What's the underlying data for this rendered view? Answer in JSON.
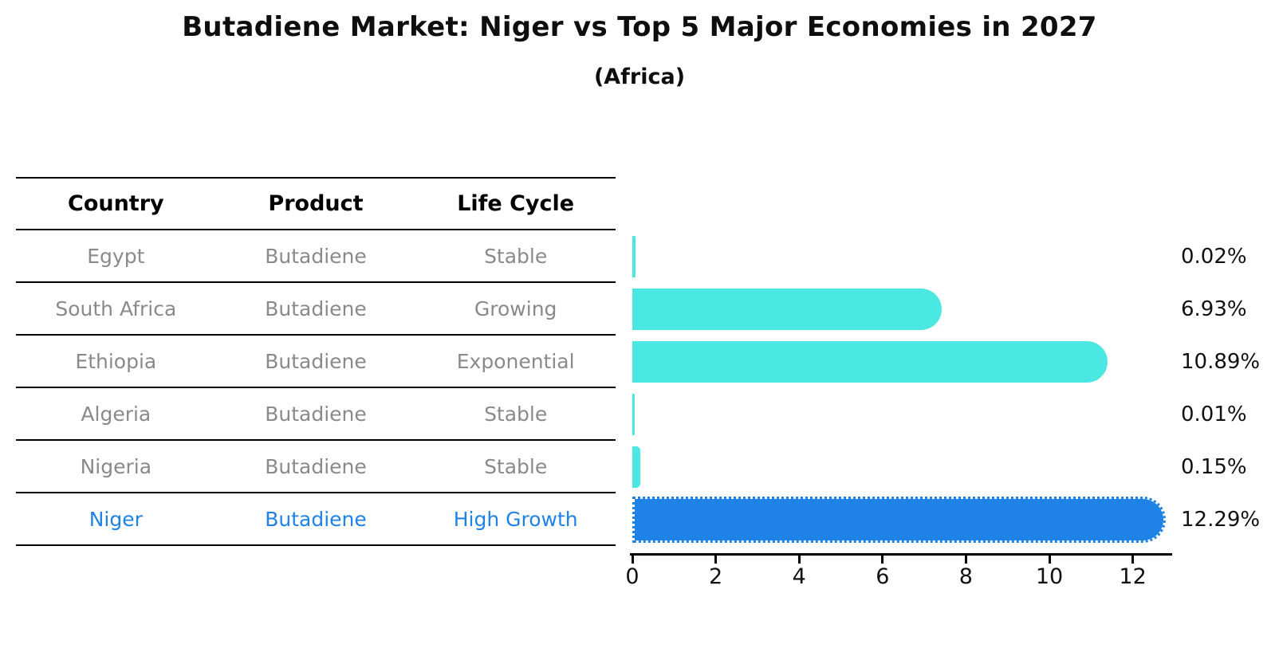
{
  "title": "Butadiene Market: Niger vs Top 5 Major Economies in 2027",
  "subtitle": "(Africa)",
  "table": {
    "headers": [
      "Country",
      "Product",
      "Life Cycle"
    ],
    "rows": [
      {
        "country": "Egypt",
        "product": "Butadiene",
        "life_cycle": "Stable",
        "highlighted": false
      },
      {
        "country": "South Africa",
        "product": "Butadiene",
        "life_cycle": "Growing",
        "highlighted": false
      },
      {
        "country": "Ethiopia",
        "product": "Butadiene",
        "life_cycle": "Exponential",
        "highlighted": false
      },
      {
        "country": "Algeria",
        "product": "Butadiene",
        "life_cycle": "Stable",
        "highlighted": false
      },
      {
        "country": "Nigeria",
        "product": "Butadiene",
        "life_cycle": "Stable",
        "highlighted": false
      },
      {
        "country": "Niger",
        "product": "Butadiene",
        "life_cycle": "High Growth",
        "highlighted": true
      }
    ]
  },
  "chart_data": {
    "type": "bar",
    "orientation": "horizontal",
    "title": "Butadiene Market: Niger vs Top 5 Major Economies in 2027",
    "subtitle": "(Africa)",
    "categories": [
      "Egypt",
      "South Africa",
      "Ethiopia",
      "Algeria",
      "Nigeria",
      "Niger"
    ],
    "values": [
      0.02,
      6.93,
      10.89,
      0.01,
      0.15,
      12.29
    ],
    "value_labels": [
      "0.02%",
      "6.93%",
      "10.89%",
      "0.01%",
      "0.15%",
      "12.29%"
    ],
    "x_ticks": [
      0,
      2,
      4,
      6,
      8,
      10,
      12
    ],
    "xlim": [
      0,
      12.9
    ],
    "grid": false,
    "legend": "none",
    "highlight_index": 5,
    "unit_suffix": "%"
  },
  "colors": {
    "bar": "#4be7e2",
    "highlight_bar": "#1f82e6",
    "highlight_text": "#1f82e6",
    "table_text": "#8a8a8a",
    "header_text": "#000000",
    "value_text": "#111111",
    "axis": "#000000"
  }
}
